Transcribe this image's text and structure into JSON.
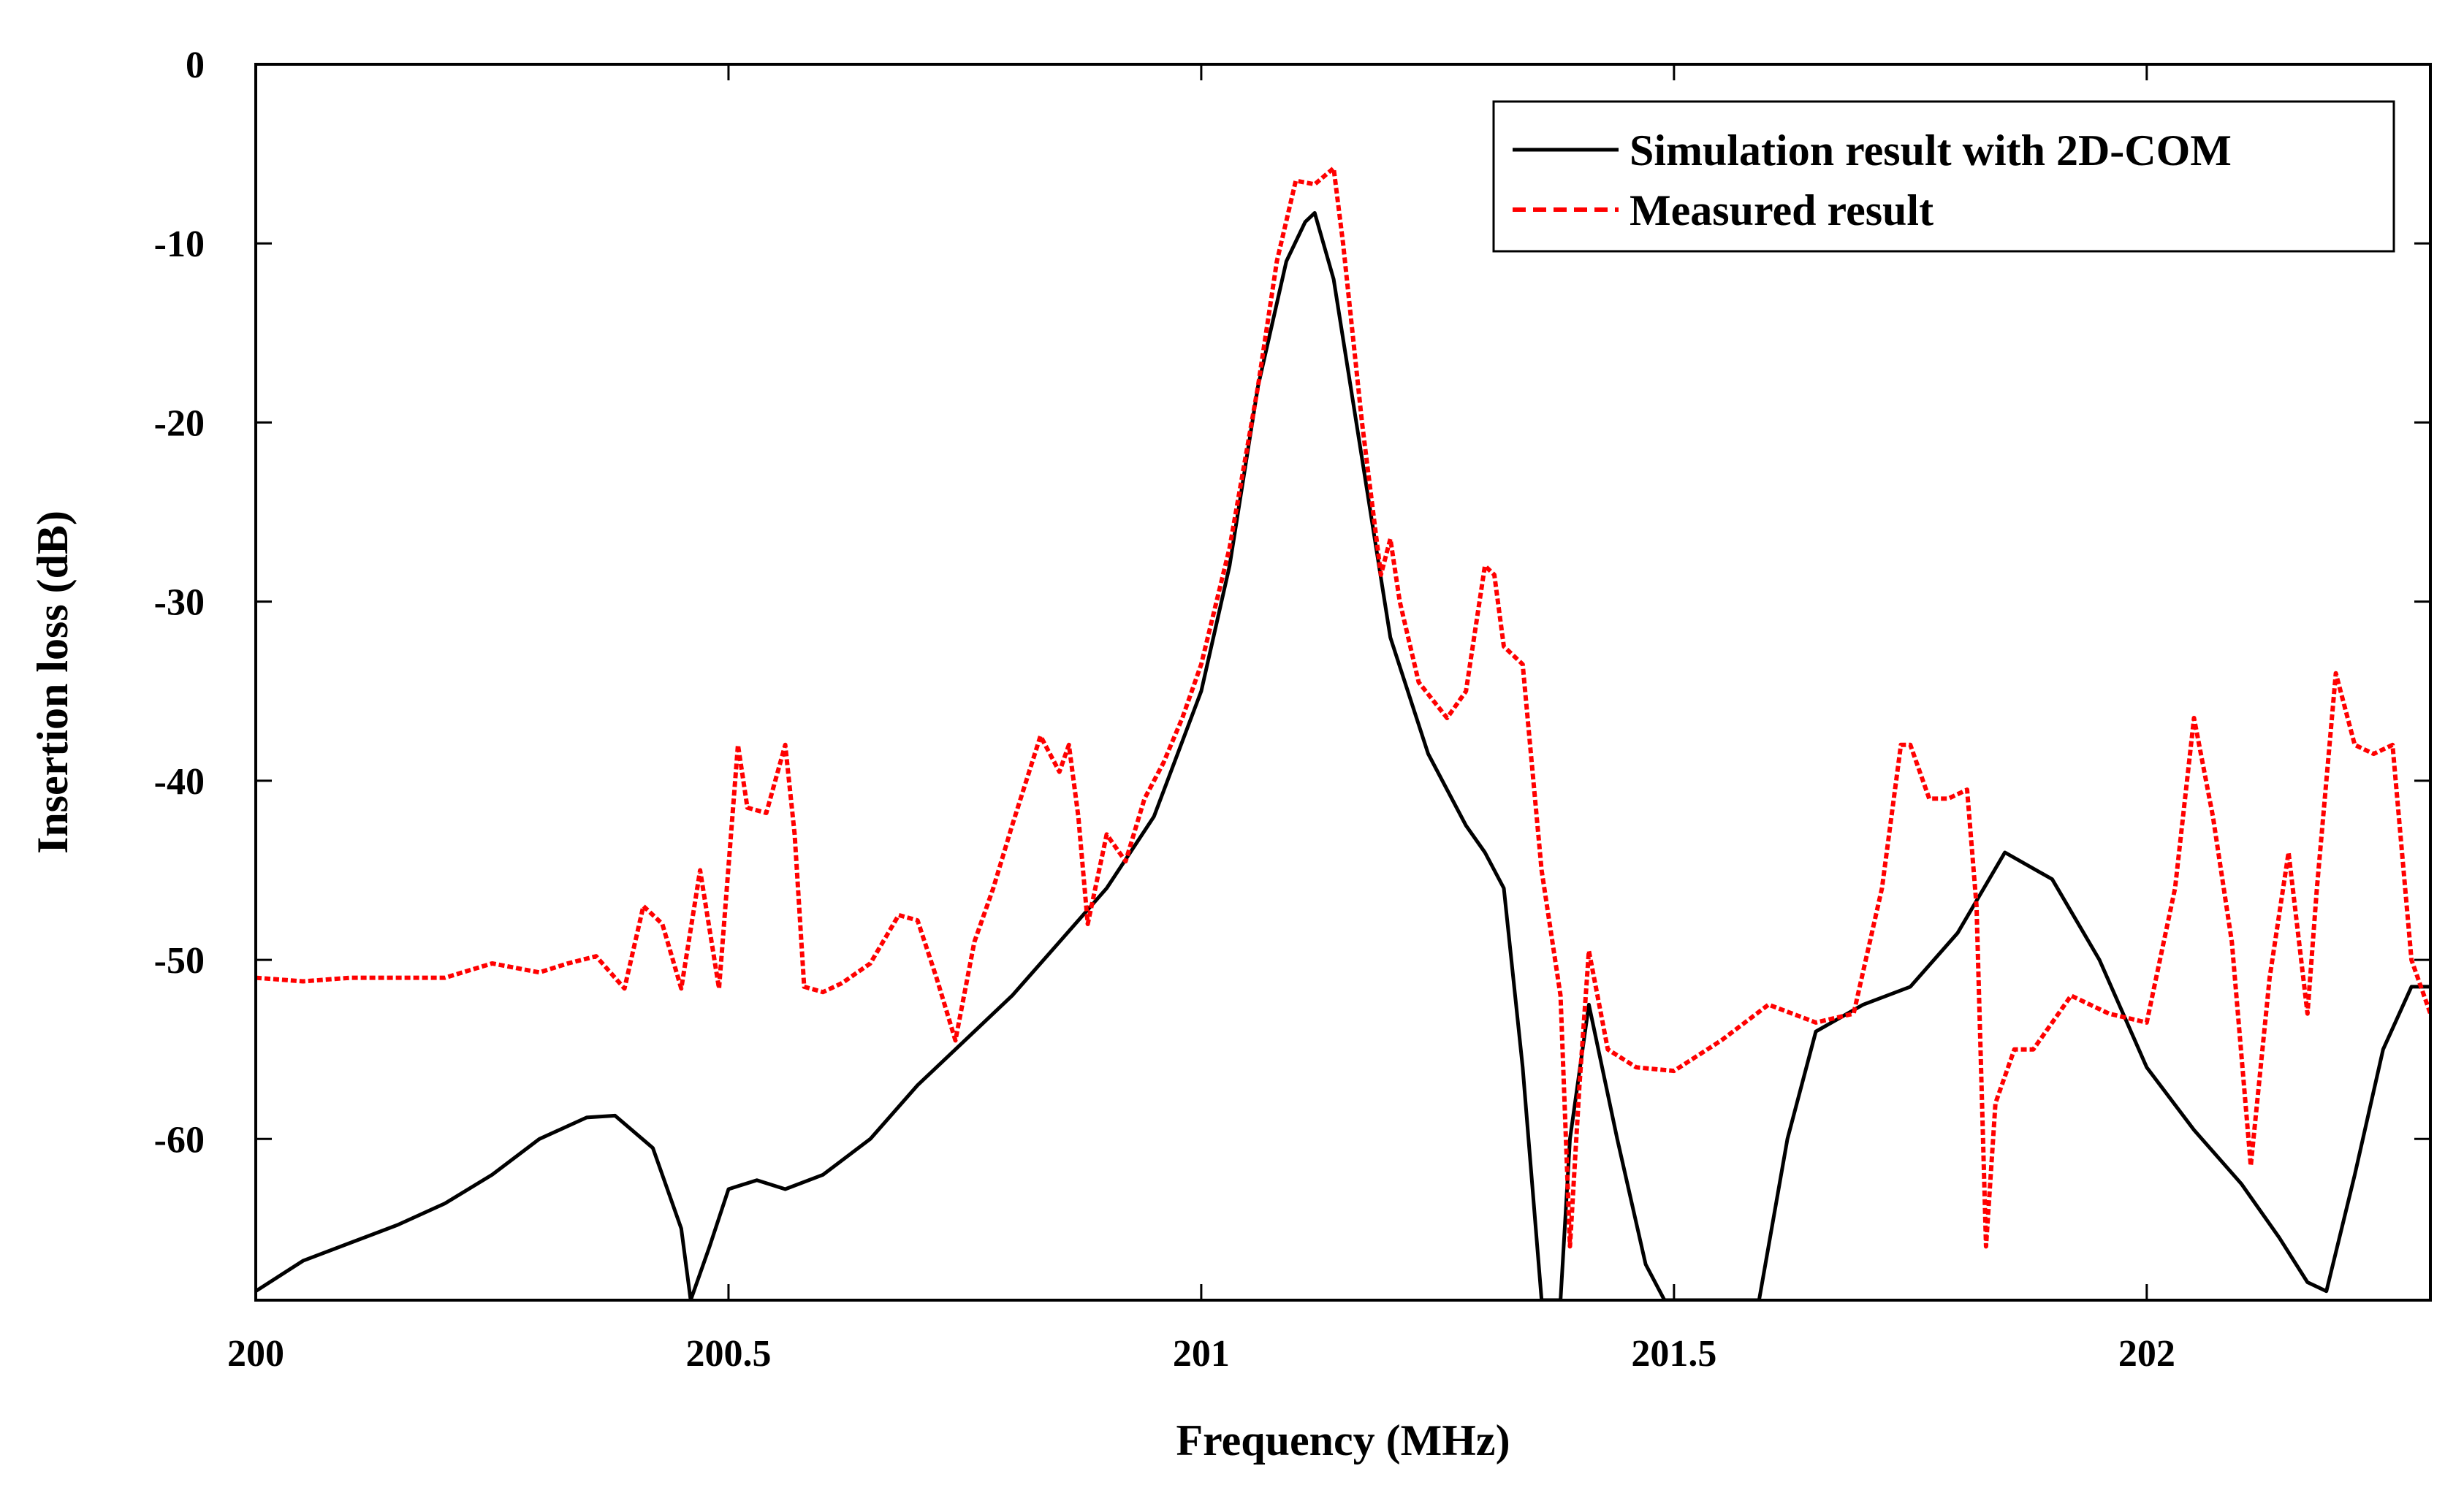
{
  "chart_data": {
    "type": "line",
    "title": "",
    "xlabel": "Frequency (MHz)",
    "ylabel": "Insertion loss (dB)",
    "xlim": [
      200,
      202.3
    ],
    "ylim": [
      -69,
      0
    ],
    "xticks": [
      200,
      200.5,
      201,
      201.5,
      202
    ],
    "xtick_labels": [
      "200",
      "200.5",
      "201",
      "201.5",
      "202"
    ],
    "yticks": [
      0,
      -10,
      -20,
      -30,
      -40,
      -50,
      -60
    ],
    "ytick_labels": [
      "0",
      "-10",
      "-20",
      "-30",
      "-40",
      "-50",
      "-60"
    ],
    "grid": false,
    "legend_position": "top-right",
    "series": [
      {
        "name": "Simulation result with 2D-COM",
        "color": "#000000",
        "style": "solid",
        "x": [
          200.0,
          200.05,
          200.1,
          200.15,
          200.2,
          200.25,
          200.3,
          200.35,
          200.38,
          200.42,
          200.45,
          200.46,
          200.48,
          200.5,
          200.53,
          200.56,
          200.6,
          200.65,
          200.7,
          200.75,
          200.8,
          200.85,
          200.9,
          200.95,
          201.0,
          201.03,
          201.06,
          201.09,
          201.11,
          201.12,
          201.14,
          201.17,
          201.2,
          201.24,
          201.28,
          201.3,
          201.32,
          201.34,
          201.36,
          201.38,
          201.39,
          201.41,
          201.44,
          201.47,
          201.49,
          201.51,
          201.55,
          201.59,
          201.62,
          201.65,
          201.7,
          201.75,
          201.8,
          201.85,
          201.9,
          201.95,
          202.0,
          202.05,
          202.1,
          202.14,
          202.17,
          202.19,
          202.22,
          202.25,
          202.28,
          202.3
        ],
        "values": [
          -68.5,
          -66.8,
          -65.8,
          -64.8,
          -63.6,
          -62.0,
          -60.0,
          -58.8,
          -58.7,
          -60.5,
          -65.0,
          -69.0,
          -66.0,
          -62.8,
          -62.3,
          -62.8,
          -62.0,
          -60.0,
          -57.0,
          -54.5,
          -52.0,
          -49.0,
          -46.0,
          -42.0,
          -35.0,
          -28.0,
          -18.0,
          -11.0,
          -8.8,
          -8.3,
          -12.0,
          -22.0,
          -32.0,
          -38.5,
          -42.5,
          -44.0,
          -46.0,
          -56.0,
          -69.0,
          -69.0,
          -60.0,
          -52.5,
          -60.0,
          -67.0,
          -69.0,
          -69.0,
          -69.0,
          -69.0,
          -60.0,
          -54.0,
          -52.5,
          -51.5,
          -48.5,
          -44.0,
          -45.5,
          -50.0,
          -56.0,
          -59.5,
          -62.5,
          -65.5,
          -68.0,
          -68.5,
          -62.0,
          -55.0,
          -51.5,
          -51.5
        ]
      },
      {
        "name": "Measured result",
        "color": "#ff0000",
        "style": "dashed",
        "x": [
          200.0,
          200.05,
          200.1,
          200.15,
          200.2,
          200.25,
          200.3,
          200.33,
          200.36,
          200.39,
          200.41,
          200.43,
          200.45,
          200.47,
          200.49,
          200.51,
          200.52,
          200.54,
          200.56,
          200.57,
          200.58,
          200.6,
          200.62,
          200.65,
          200.68,
          200.7,
          200.72,
          200.74,
          200.76,
          200.78,
          200.8,
          200.83,
          200.85,
          200.86,
          200.87,
          200.88,
          200.9,
          200.92,
          200.94,
          200.96,
          200.98,
          201.0,
          201.03,
          201.06,
          201.08,
          201.1,
          201.12,
          201.14,
          201.15,
          201.17,
          201.19,
          201.2,
          201.21,
          201.23,
          201.26,
          201.28,
          201.3,
          201.31,
          201.32,
          201.34,
          201.36,
          201.38,
          201.39,
          201.4,
          201.41,
          201.43,
          201.46,
          201.5,
          201.55,
          201.6,
          201.65,
          201.69,
          201.72,
          201.74,
          201.75,
          201.77,
          201.79,
          201.81,
          201.82,
          201.83,
          201.84,
          201.86,
          201.88,
          201.92,
          201.96,
          202.0,
          202.03,
          202.05,
          202.07,
          202.09,
          202.11,
          202.13,
          202.15,
          202.17,
          202.18,
          202.2,
          202.22,
          202.24,
          202.26,
          202.28,
          202.3
        ],
        "values": [
          -51.0,
          -51.2,
          -51.0,
          -51.0,
          -51.0,
          -50.2,
          -50.7,
          -50.2,
          -49.8,
          -51.6,
          -47.0,
          -48.0,
          -51.6,
          -45.0,
          -51.6,
          -38.0,
          -41.5,
          -41.8,
          -38.0,
          -43.0,
          -51.5,
          -51.8,
          -51.3,
          -50.2,
          -47.5,
          -47.8,
          -51.0,
          -54.5,
          -49.0,
          -46.0,
          -42.5,
          -37.5,
          -39.5,
          -38.0,
          -42.0,
          -48.0,
          -43.0,
          -44.5,
          -41.0,
          -39.0,
          -36.5,
          -33.5,
          -27.0,
          -18.0,
          -11.0,
          -6.5,
          -6.7,
          -5.8,
          -10.0,
          -20.0,
          -28.5,
          -26.5,
          -30.0,
          -34.5,
          -36.5,
          -35.0,
          -28.0,
          -28.5,
          -32.5,
          -33.5,
          -45.0,
          -52.0,
          -66.0,
          -57.0,
          -49.5,
          -55.0,
          -56.0,
          -56.2,
          -54.5,
          -52.5,
          -53.5,
          -53.0,
          -46.0,
          -38.0,
          -38.0,
          -41.0,
          -41.0,
          -40.5,
          -47.0,
          -66.0,
          -58.0,
          -55.0,
          -55.0,
          -52.0,
          -53.0,
          -53.5,
          -46.0,
          -36.5,
          -42.0,
          -49.0,
          -61.5,
          -51.0,
          -44.0,
          -53.0,
          -46.0,
          -34.0,
          -38.0,
          -38.5,
          -38.0,
          -50.0,
          -53.0
        ]
      }
    ]
  }
}
